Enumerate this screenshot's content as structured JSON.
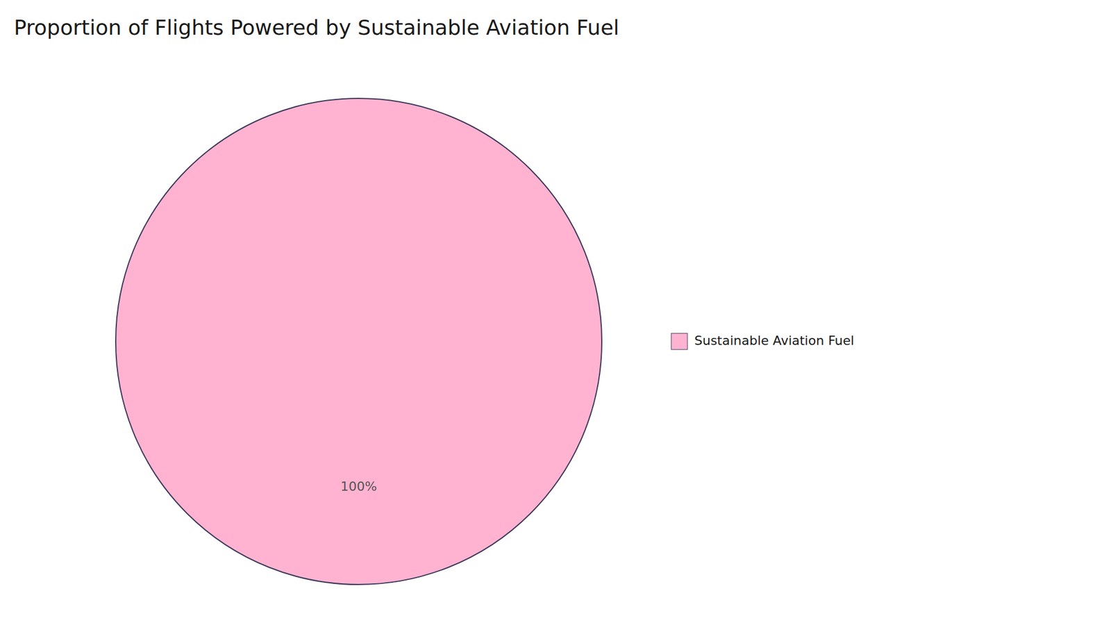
{
  "chart_data": {
    "type": "pie",
    "title": "Proportion of Flights Powered by Sustainable Aviation Fuel",
    "categories": [
      "Sustainable Aviation Fuel"
    ],
    "values": [
      100
    ],
    "value_labels": [
      "100%"
    ],
    "colors": [
      "#FFB3D1"
    ],
    "data_labels": true,
    "legend": "right"
  }
}
